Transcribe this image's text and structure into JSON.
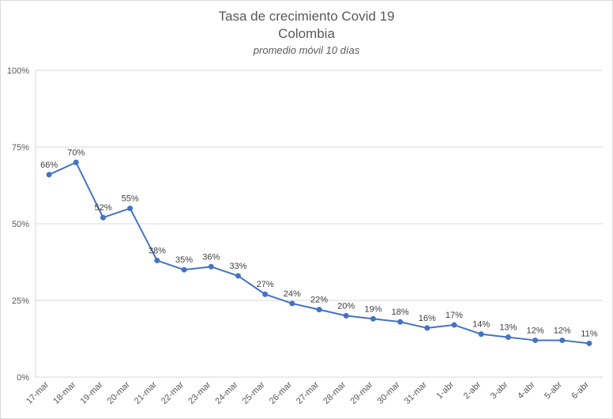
{
  "chart_data": {
    "type": "line",
    "title": "Tasa de crecimiento Covid 19",
    "title_line2": "Colombia",
    "subtitle": "promedio móvil 10 días",
    "xlabel": "",
    "ylabel": "",
    "categories": [
      "17-mar",
      "18-mar",
      "19-mar",
      "20-mar",
      "21-mar",
      "22-mar",
      "23-mar",
      "24-mar",
      "25-mar",
      "26-mar",
      "27-mar",
      "28-mar",
      "29-mar",
      "30-mar",
      "31-mar",
      "1-abr",
      "2-abr",
      "3-abr",
      "4-abr",
      "5-abr",
      "6-abr"
    ],
    "series": [
      {
        "values": [
          0.66,
          0.7,
          0.52,
          0.55,
          0.38,
          0.35,
          0.36,
          0.33,
          0.27,
          0.24,
          0.22,
          0.2,
          0.19,
          0.18,
          0.16,
          0.17,
          0.14,
          0.13,
          0.12,
          0.12,
          0.11
        ],
        "labels": [
          "66%",
          "70%",
          "52%",
          "55%",
          "38%",
          "35%",
          "36%",
          "33%",
          "27%",
          "24%",
          "22%",
          "20%",
          "19%",
          "18%",
          "16%",
          "17%",
          "14%",
          "13%",
          "12%",
          "12%",
          "11%"
        ]
      }
    ],
    "ylim": [
      0,
      1
    ],
    "yticks": [
      0,
      0.25,
      0.5,
      0.75,
      1
    ],
    "ytick_labels": [
      "0%",
      "25%",
      "50%",
      "75%",
      "100%"
    ],
    "grid": true,
    "legend": "none",
    "colors": {
      "line": "#4472c4",
      "grid": "#d9d9d9",
      "text": "#595959"
    }
  }
}
